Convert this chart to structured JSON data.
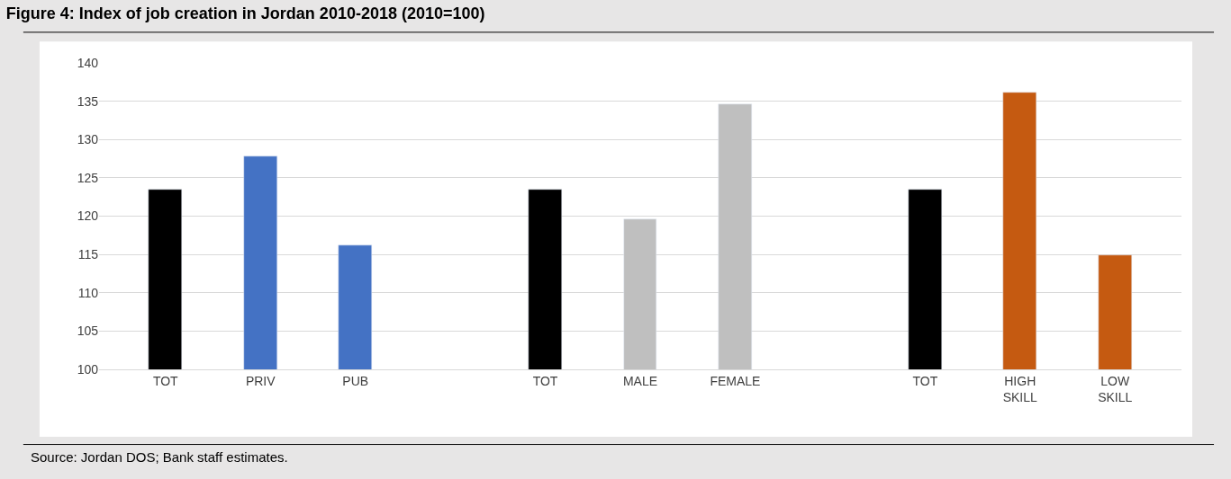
{
  "chart_data": {
    "type": "bar",
    "title": "Figure 4: Index of job creation in Jordan 2010-2018 (2010=100)",
    "categories": [
      "TOT",
      "PRIV",
      "PUB",
      null,
      "TOT",
      "MALE",
      "FEMALE",
      null,
      "TOT",
      "HIGH SKILL",
      "LOW SKILL"
    ],
    "values": [
      123.5,
      127.8,
      116.2,
      null,
      123.5,
      119.6,
      134.6,
      null,
      123.5,
      136.1,
      114.9
    ],
    "colors": [
      "#000000",
      "#4472c4",
      "#4472c4",
      null,
      "#000000",
      "#bfbfbf",
      "#bfbfbf",
      null,
      "#000000",
      "#c55a11",
      "#c55a11"
    ],
    "ylim": [
      100,
      140
    ],
    "yticks": [
      100,
      105,
      110,
      115,
      120,
      125,
      130,
      135,
      140
    ],
    "grid": "y",
    "legend": false,
    "annotations": [
      "Source: Jordan DOS; Bank staff estimates."
    ]
  }
}
